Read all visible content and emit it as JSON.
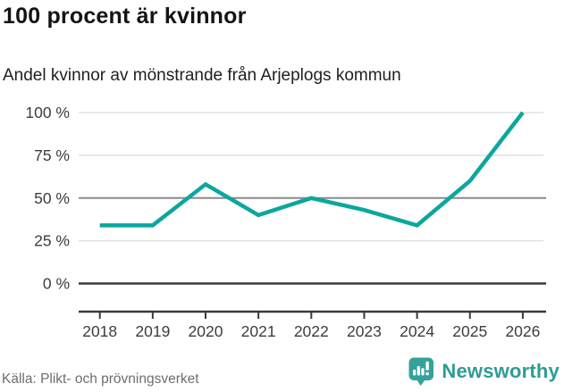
{
  "chart_data": {
    "type": "line",
    "title": "100 procent är kvinnor",
    "subtitle": "Andel kvinnor av mönstrande från Arjeplogs kommun",
    "x": [
      2018,
      2019,
      2020,
      2021,
      2022,
      2023,
      2024,
      2025,
      2026
    ],
    "x_labels": [
      "2018",
      "2019",
      "2020",
      "2021",
      "2022",
      "2023",
      "2024",
      "2025",
      "2026"
    ],
    "series": [
      {
        "name": "Andel kvinnor",
        "values": [
          34,
          34,
          58,
          40,
          50,
          43,
          34,
          60,
          100
        ]
      }
    ],
    "unit": "%",
    "ylim": [
      0,
      100
    ],
    "yticks": [
      0,
      25,
      50,
      75,
      100
    ],
    "ytick_labels": [
      "0 %",
      "25 %",
      "50 %",
      "75 %",
      "100 %"
    ],
    "grid": "on",
    "legend": "none",
    "line_color": "#0ba79d",
    "axis_color": "#3a3a3a",
    "grid_color_light": "#e0e0e0",
    "grid_color_mid": "#8a8a8a",
    "tick_label_color": "#3d3d3d"
  },
  "footer": {
    "source": "Källa: Plikt- och prövningsverket"
  },
  "branding": {
    "logo_text": "Newsworthy",
    "logo_icon": "bar-chart-bubble-icon",
    "brand_color": "#2f9c94"
  }
}
